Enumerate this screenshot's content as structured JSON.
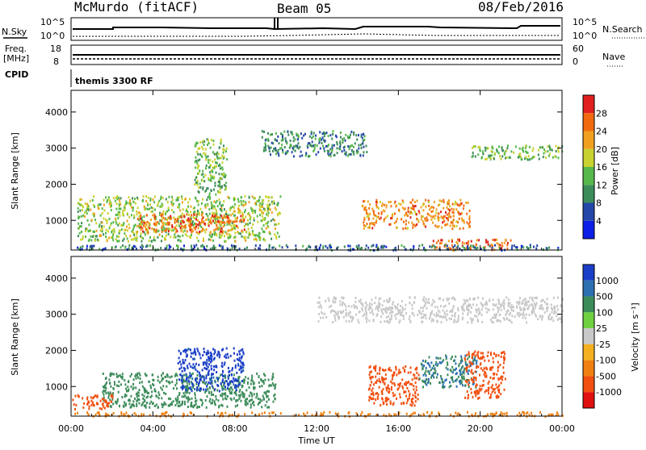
{
  "header": {
    "title": "McMurdo (fitACF)",
    "beam": "Beam 05",
    "date": "08/Feb/2016"
  },
  "top_panels": {
    "nsky_label": "N.Sky",
    "nsearch_label": "N.Search",
    "nsky_ticks": [
      "10^5",
      "10^0"
    ],
    "nsearch_ticks": [
      "10^5",
      "10^0"
    ],
    "freq_label": "Freq.",
    "freq_unit": "[MHz]",
    "freq_ticks": [
      "18",
      "8"
    ],
    "nave_label": "Nave",
    "nave_ticks": [
      "60",
      "0"
    ],
    "cpid_label": "CPID",
    "cpid_value": "themis 3300 RF"
  },
  "axes": {
    "x_label": "Time UT",
    "x_ticks": [
      "00:00",
      "04:00",
      "08:00",
      "12:00",
      "16:00",
      "20:00",
      "00:00"
    ],
    "y_label": "Slant Range [km]",
    "y_ticks": [
      "1000",
      "2000",
      "3000",
      "4000"
    ]
  },
  "colorbars": {
    "power": {
      "label": "Power [dB]",
      "ticks": [
        "4",
        "8",
        "12",
        "16",
        "20",
        "24",
        "28"
      ],
      "colors": [
        "#0b1fe6",
        "#2446a8",
        "#3c8c5a",
        "#56b84a",
        "#c8d230",
        "#f0a020",
        "#f26a10",
        "#e02020"
      ]
    },
    "velocity": {
      "label": "Velocity [m s⁻¹]",
      "ticks": [
        "1000",
        "500",
        "100",
        "25",
        "-25",
        "-100",
        "-500",
        "-1000"
      ],
      "colors": [
        "#1a3ec8",
        "#2c6fb0",
        "#3c8c5a",
        "#6fd040",
        "#c8c8c8",
        "#f4b020",
        "#f08010",
        "#f25010",
        "#e01010"
      ]
    }
  },
  "chart_data": [
    {
      "type": "heatmap",
      "name": "Power",
      "x": [
        0,
        4,
        8,
        12,
        16,
        20,
        24
      ],
      "xlabel": "Time UT",
      "ylabel": "Slant Range [km]",
      "ylim": [
        180,
        4600
      ],
      "xlim": [
        0,
        24
      ],
      "regions": [
        {
          "t0": 0.3,
          "t1": 10.2,
          "r0": 450,
          "r1": 1700,
          "value": 16
        },
        {
          "t0": 3.2,
          "t1": 8.5,
          "r0": 700,
          "r1": 1200,
          "value": 26
        },
        {
          "t0": 6.0,
          "t1": 7.6,
          "r0": 1700,
          "r1": 3300,
          "value": 14
        },
        {
          "t0": 9.3,
          "t1": 14.5,
          "r0": 2800,
          "r1": 3500,
          "value": 10
        },
        {
          "t0": 14.2,
          "t1": 19.5,
          "r0": 800,
          "r1": 1600,
          "value": 24
        },
        {
          "t0": 19.5,
          "t1": 24.0,
          "r0": 2700,
          "r1": 3100,
          "value": 14
        },
        {
          "t0": 17.6,
          "t1": 21.5,
          "r0": 200,
          "r1": 500,
          "value": 26
        },
        {
          "t0": 0.0,
          "t1": 24.0,
          "r0": 200,
          "r1": 350,
          "value": 8
        }
      ]
    },
    {
      "type": "heatmap",
      "name": "Velocity",
      "x": [
        0,
        4,
        8,
        12,
        16,
        20,
        24
      ],
      "xlabel": "Time UT",
      "ylabel": "Slant Range [km]",
      "ylim": [
        180,
        4600
      ],
      "xlim": [
        0,
        24
      ],
      "regions": [
        {
          "t0": 1.5,
          "t1": 10.0,
          "r0": 450,
          "r1": 1400,
          "value": 200
        },
        {
          "t0": 5.2,
          "t1": 8.4,
          "r0": 900,
          "r1": 2100,
          "value": 1000
        },
        {
          "t0": 0.0,
          "t1": 2.0,
          "r0": 400,
          "r1": 800,
          "value": -500
        },
        {
          "t0": 12.0,
          "t1": 24.0,
          "r0": 2800,
          "r1": 3500,
          "value": 0
        },
        {
          "t0": 14.5,
          "t1": 17.0,
          "r0": 500,
          "r1": 1600,
          "value": -500
        },
        {
          "t0": 17.0,
          "t1": 19.8,
          "r0": 1000,
          "r1": 1900,
          "value": 300
        },
        {
          "t0": 19.2,
          "t1": 21.2,
          "r0": 700,
          "r1": 2000,
          "value": -500
        },
        {
          "t0": 0.0,
          "t1": 24.0,
          "r0": 200,
          "r1": 320,
          "value": -100
        }
      ]
    }
  ]
}
